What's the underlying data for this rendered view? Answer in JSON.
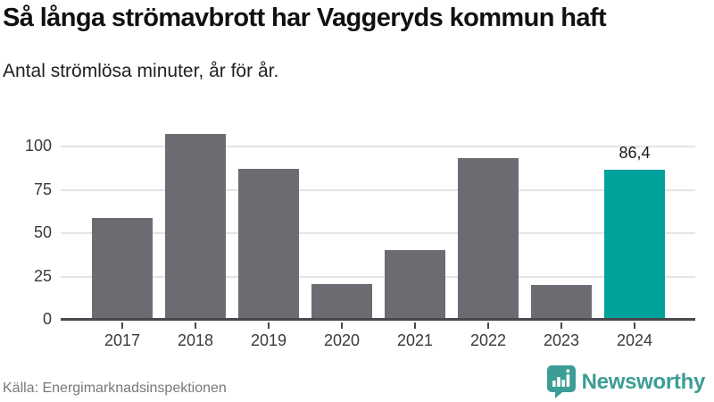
{
  "chart_data": {
    "type": "bar",
    "title": "Så långa strömavbrott har Vaggeryds kommun haft",
    "subtitle": "Antal strömlösa minuter, år för år.",
    "categories": [
      "2017",
      "2018",
      "2019",
      "2020",
      "2021",
      "2022",
      "2023",
      "2024"
    ],
    "values": [
      58.6,
      107.5,
      87.3,
      20.6,
      40.4,
      93.1,
      20.3,
      86.4
    ],
    "highlight_index": 7,
    "highlight_value_label": "86,4",
    "xlabel": "",
    "ylabel": "",
    "yticks": [
      0,
      25,
      50,
      75,
      100
    ],
    "ylim": [
      0,
      112.4
    ],
    "grid": true,
    "legend": false,
    "bar_color": "#6d6b71",
    "highlight_color": "#00a39b",
    "source": "Källa: Energimarknadsinspektionen"
  },
  "footer": {
    "brand_name": "Newsworthy",
    "brand_color": "#3b9d95",
    "logo_icon": "newsworthy-chart-bubble-icon"
  }
}
